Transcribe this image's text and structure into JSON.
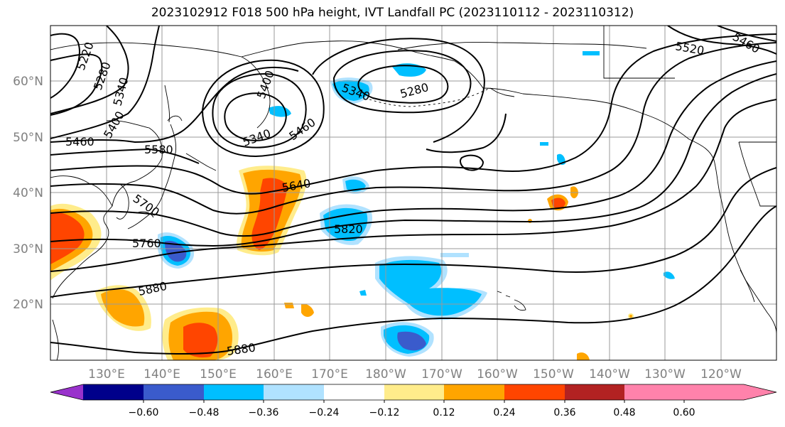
{
  "title": "2023102912 F018 500 hPa height, IVT Landfall PC (2023110112 - 2023110312)",
  "lat_labels": [
    "60°N",
    "50°N",
    "40°N",
    "30°N",
    "20°N"
  ],
  "lon_labels": [
    "130°E",
    "140°E",
    "150°E",
    "160°E",
    "170°E",
    "180°W",
    "170°W",
    "160°W",
    "150°W",
    "140°W",
    "130°W",
    "120°W"
  ],
  "contour_labels": [
    "5220",
    "5280",
    "5340",
    "5400",
    "5460",
    "5580",
    "5700",
    "5760",
    "5880",
    "5400",
    "5340",
    "5460",
    "5340",
    "5280",
    "5640",
    "5820",
    "5880",
    "5520",
    "5460"
  ],
  "colorbar": {
    "colors": [
      "#9932cc",
      "#00008b",
      "#3a5bcc",
      "#00bfff",
      "#b0e2ff",
      "#ffffff",
      "#ffec8b",
      "#ffa500",
      "#ff4500",
      "#b22222",
      "#ff82ab"
    ],
    "tick_labels": [
      "−0.60",
      "−0.48",
      "−0.36",
      "−0.24",
      "−0.12",
      "0.12",
      "0.24",
      "0.36",
      "0.48",
      "0.60"
    ]
  }
}
